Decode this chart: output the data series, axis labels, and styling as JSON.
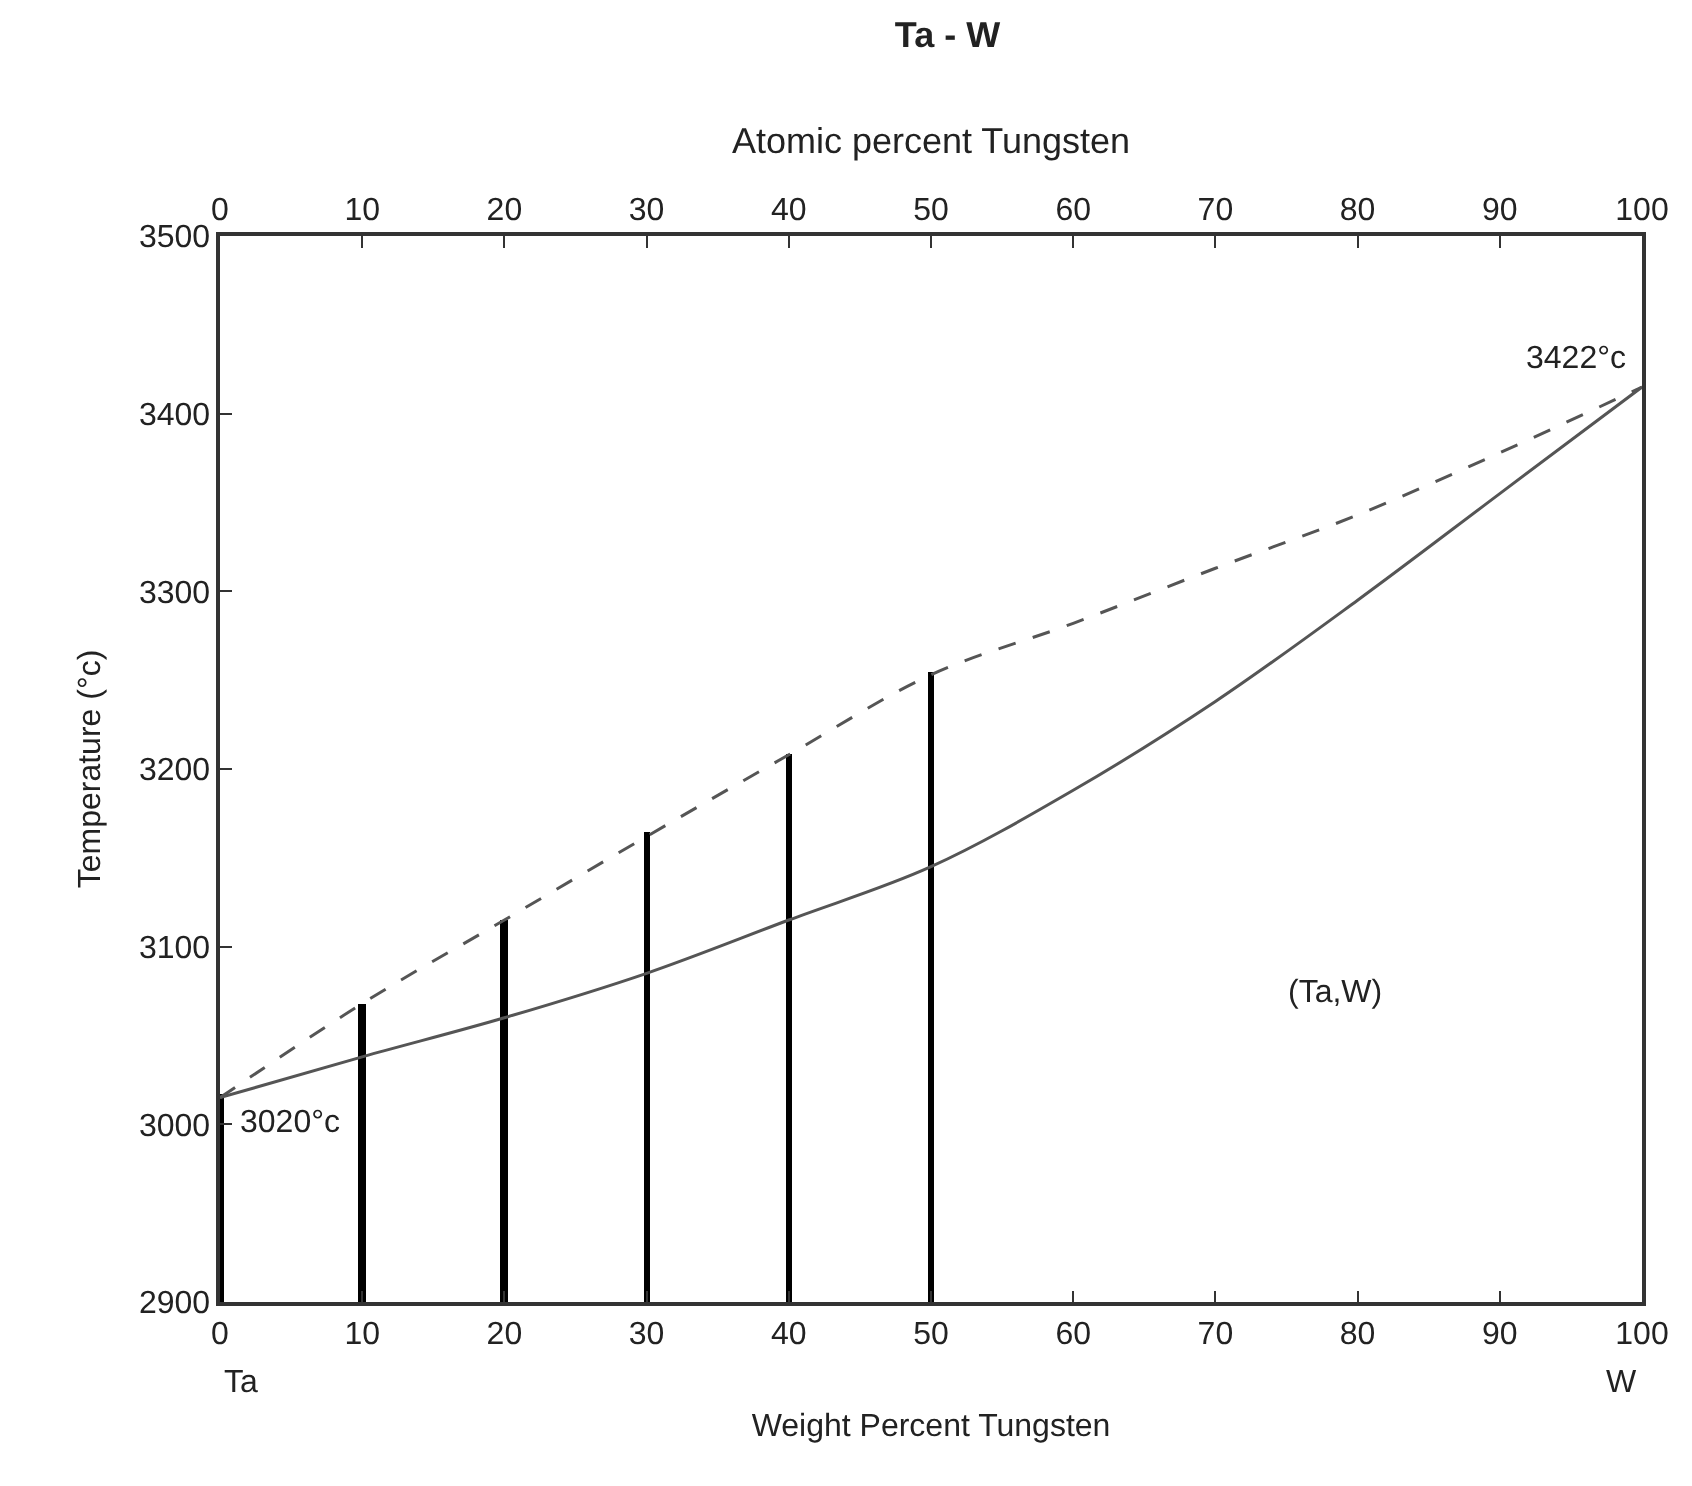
{
  "chart_data": {
    "type": "line",
    "title": "Ta - W",
    "xlabel": "Weight Percent Tungsten",
    "ylabel": "Temperature (°c)",
    "x2label": "Atomic percent Tungsten",
    "xlim": [
      0,
      100
    ],
    "xticks": [
      0,
      10,
      20,
      30,
      40,
      50,
      60,
      70,
      80,
      90,
      100
    ],
    "x2lim": [
      0,
      100
    ],
    "x2ticks": [
      0,
      10,
      20,
      30,
      40,
      50,
      60,
      70,
      80,
      90,
      100
    ],
    "ylim": [
      2900,
      3500
    ],
    "yticks": [
      2900,
      3000,
      3100,
      3200,
      3300,
      3400,
      3500
    ],
    "marker": "none",
    "series": [
      {
        "color": "#555555",
        "line_style": "dashed",
        "x": [
          0,
          10,
          20,
          30,
          40,
          50,
          60,
          70,
          80,
          90,
          100
        ],
        "values": [
          3015,
          3068,
          3115,
          3162,
          3208,
          3253,
          3282,
          3313,
          3343,
          3378,
          3415
        ]
      },
      {
        "color": "#555555",
        "line_style": "solid",
        "x": [
          0,
          10,
          20,
          30,
          40,
          50,
          60,
          70,
          80,
          90,
          100
        ],
        "values": [
          3015,
          3038,
          3060,
          3085,
          3115,
          3145,
          3188,
          3238,
          3295,
          3355,
          3415
        ]
      },
      {
        "type": "bar",
        "color": "#000000",
        "x": [
          0,
          10,
          20,
          30,
          40,
          50
        ],
        "base": [
          2900,
          2900,
          2900,
          2900,
          2900,
          2900
        ],
        "values": [
          117,
          168,
          215,
          265,
          308,
          355
        ]
      }
    ],
    "annotations": [
      {
        "text": "3020°c",
        "x": 0,
        "y": 3015
      },
      {
        "text": "3422°c",
        "x": 100,
        "y": 3415
      },
      "(Ta,W)",
      "Ta",
      "W"
    ]
  }
}
